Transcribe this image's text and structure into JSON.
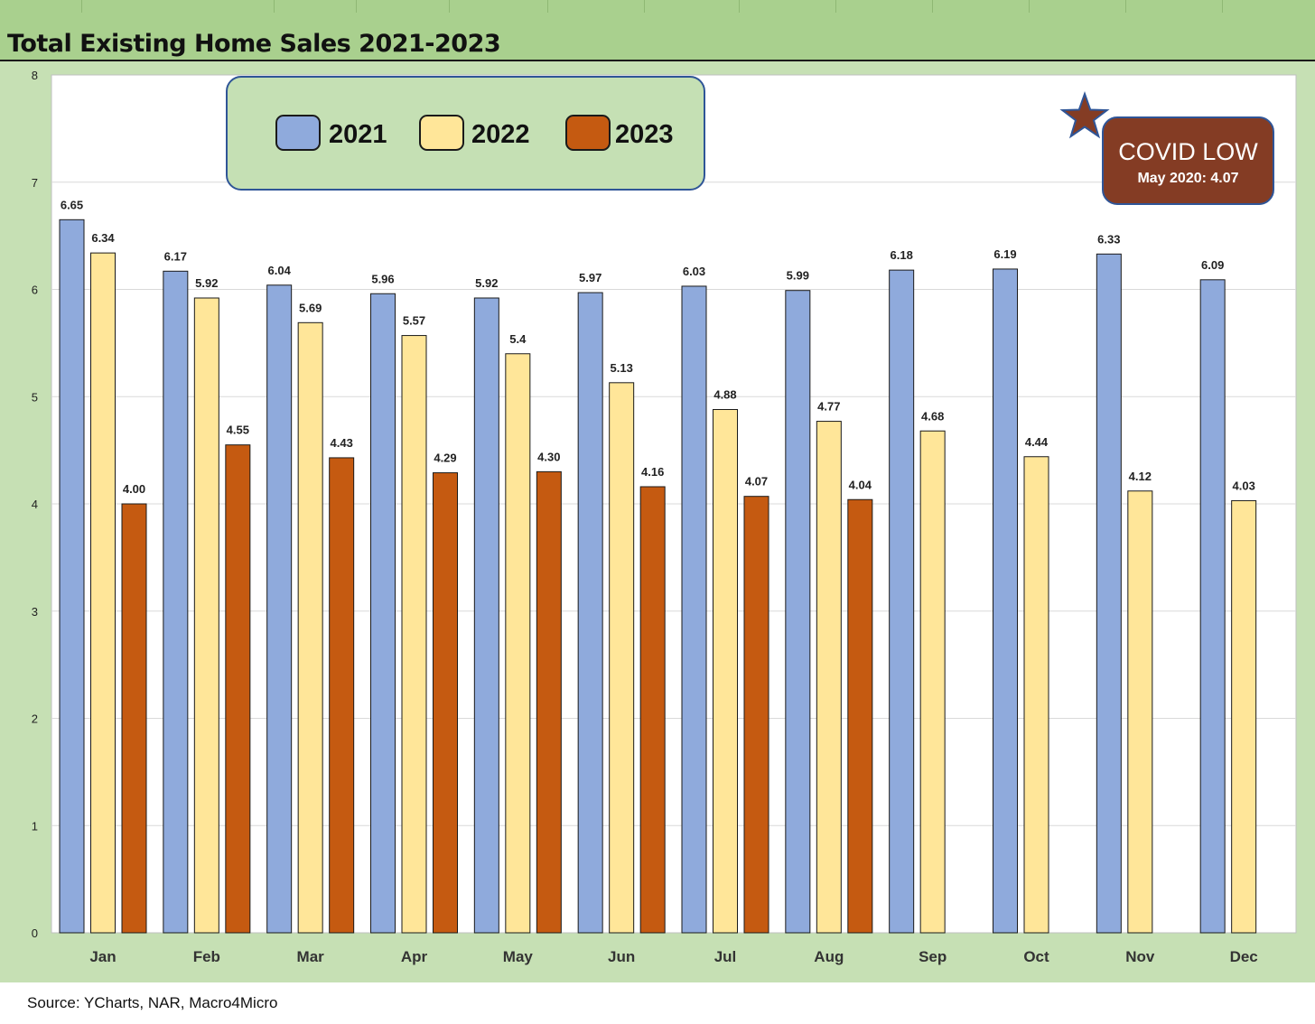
{
  "title": "Total Existing Home Sales 2021-2023",
  "source": "Source: YCharts, NAR, Macro4Micro",
  "annotation": {
    "title": "COVID LOW",
    "subtitle": "May 2020: 4.07",
    "icon": "star-icon"
  },
  "colors": {
    "2021": "#8faadc",
    "2022": "#ffe699",
    "2023": "#c55a11",
    "frame": "#c6e0b4",
    "title_bar": "#a9d08e",
    "annotation_bg": "#843c24",
    "star": "#843c24"
  },
  "chart_data": {
    "type": "bar",
    "title": "Total Existing Home Sales 2021-2023",
    "categories": [
      "Jan",
      "Feb",
      "Mar",
      "Apr",
      "May",
      "Jun",
      "Jul",
      "Aug",
      "Sep",
      "Oct",
      "Nov",
      "Dec"
    ],
    "series": [
      {
        "name": "2021",
        "values": [
          6.65,
          6.17,
          6.04,
          5.96,
          5.92,
          5.97,
          6.03,
          5.99,
          6.18,
          6.19,
          6.33,
          6.09
        ],
        "labels": [
          "6.65",
          "6.17",
          "6.04",
          "5.96",
          "5.92",
          "5.97",
          "6.03",
          "5.99",
          "6.18",
          "6.19",
          "6.33",
          "6.09"
        ]
      },
      {
        "name": "2022",
        "values": [
          6.34,
          5.92,
          5.69,
          5.57,
          5.4,
          5.13,
          4.88,
          4.77,
          4.68,
          4.44,
          4.12,
          4.03
        ],
        "labels": [
          "6.34",
          "5.92",
          "5.69",
          "5.57",
          "5.4",
          "5.13",
          "4.88",
          "4.77",
          "4.68",
          "4.44",
          "4.12",
          "4.03"
        ]
      },
      {
        "name": "2023",
        "values": [
          4.0,
          4.55,
          4.43,
          4.29,
          4.3,
          4.16,
          4.07,
          4.04,
          null,
          null,
          null,
          null
        ],
        "labels": [
          "4.00",
          "4.55",
          "4.43",
          "4.29",
          "4.30",
          "4.16",
          "4.07",
          "4.04",
          null,
          null,
          null,
          null
        ]
      }
    ],
    "yticks": [
      "0",
      "1",
      "2",
      "3",
      "4",
      "5",
      "6",
      "7",
      "8"
    ],
    "ylim": [
      0,
      8
    ],
    "grid": true,
    "legend_position": "top-left"
  }
}
